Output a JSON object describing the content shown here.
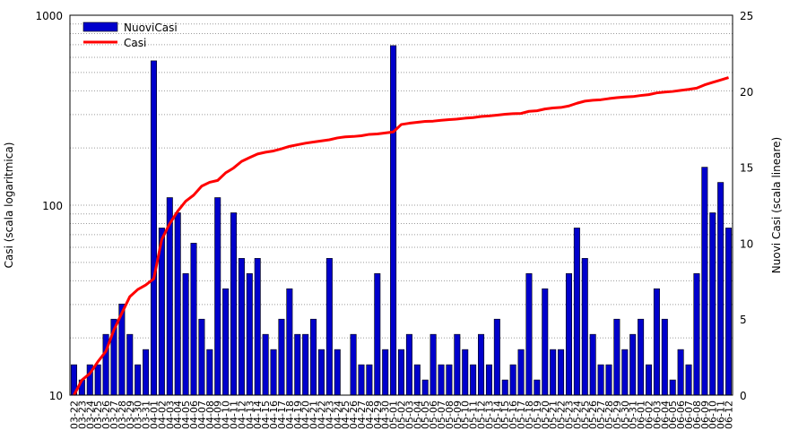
{
  "chart_data": {
    "type": "bar",
    "y_left": {
      "label": "Casi (scala logaritmica)",
      "scale": "log",
      "range": [
        10,
        1000
      ],
      "ticks": [
        "10",
        "100",
        "1000"
      ]
    },
    "y_right": {
      "label": "Nuovi Casi (scala lineare)",
      "scale": "linear",
      "range": [
        0,
        25
      ],
      "ticks": [
        "0",
        "5",
        "10",
        "15",
        "20",
        "25"
      ]
    },
    "categories": [
      "03-22",
      "03-23",
      "03-24",
      "03-25",
      "03-26",
      "03-27",
      "03-28",
      "03-29",
      "03-30",
      "03-31",
      "04-01",
      "04-02",
      "04-03",
      "04-04",
      "04-05",
      "04-06",
      "04-07",
      "04-08",
      "04-09",
      "04-10",
      "04-11",
      "04-12",
      "04-13",
      "04-14",
      "04-15",
      "04-16",
      "04-17",
      "04-18",
      "04-19",
      "04-20",
      "04-21",
      "04-22",
      "04-23",
      "04-24",
      "04-25",
      "04-26",
      "04-27",
      "04-28",
      "04-29",
      "04-30",
      "05-01",
      "05-02",
      "05-03",
      "05-04",
      "05-05",
      "05-06",
      "05-07",
      "05-08",
      "05-09",
      "05-10",
      "05-11",
      "05-12",
      "05-13",
      "05-14",
      "05-15",
      "05-16",
      "05-17",
      "05-18",
      "05-19",
      "05-20",
      "05-21",
      "05-22",
      "05-23",
      "05-24",
      "05-25",
      "05-26",
      "05-27",
      "05-28",
      "05-29",
      "05-30",
      "05-31",
      "06-01",
      "06-02",
      "06-03",
      "06-04",
      "06-05",
      "06-06",
      "06-07",
      "06-08",
      "06-09",
      "06-10",
      "06-11",
      "06-12"
    ],
    "x_tick_labels": [
      "03-22",
      "03-23",
      "03-24",
      "03-25",
      "03-26",
      "03-27",
      "03-28",
      "03-29",
      "03-30",
      "03-31",
      "04-01",
      "04-02",
      "04-03",
      "04-04",
      "04-05",
      "04-06",
      "04-07",
      "04-08",
      "04-09",
      "04-10",
      "04-11",
      "04-12",
      "04-13",
      "04-14",
      "04-15",
      "04-16",
      "04-17",
      "04-18",
      "04-19",
      "04-20",
      "04-21",
      "04-22",
      "04-23",
      "04-24",
      "04-25",
      "04-26",
      "04-27",
      "04-28",
      "04-29",
      "04-30",
      "05-01",
      "05-02",
      "05-03",
      "05-04",
      "05-05",
      "05-06",
      "05-07",
      "05-08",
      "05-09",
      "05-10",
      "05-11",
      "05-12",
      "05-13",
      "05-14",
      "05-15",
      "05-16",
      "05-17",
      "05-18",
      "05-19",
      "05-20",
      "05-21",
      "05-22",
      "05-23",
      "05-24",
      "05-25",
      "05-26",
      "05-27",
      "05-28",
      "05-29",
      "05-30",
      "05-31",
      "06-01",
      "06-02",
      "06-03",
      "06-04",
      "06-05",
      "06-06",
      "06-07",
      "06-08",
      "06-09",
      "06-10",
      "06-11",
      "06-12"
    ],
    "series": [
      {
        "name": "NuoviCasi",
        "type": "bar",
        "axis": "right",
        "color": "#0000cc",
        "values": [
          2,
          1,
          2,
          2,
          4,
          5,
          6,
          4,
          2,
          3,
          22,
          11,
          13,
          12,
          8,
          10,
          5,
          3,
          13,
          7,
          12,
          9,
          8,
          9,
          4,
          3,
          5,
          7,
          4,
          4,
          5,
          3,
          9,
          3,
          0,
          4,
          2,
          2,
          8,
          3,
          23,
          3,
          4,
          2,
          1,
          4,
          2,
          2,
          4,
          3,
          2,
          4,
          2,
          5,
          1,
          2,
          3,
          8,
          1,
          7,
          3,
          3,
          8,
          11,
          9,
          4,
          2,
          2,
          5,
          3,
          4,
          5,
          2,
          7,
          5,
          1,
          3,
          2,
          8,
          15,
          12,
          14,
          11
        ]
      },
      {
        "name": "Casi",
        "type": "line",
        "axis": "left",
        "color": "#ff0000",
        "values": [
          10,
          12,
          13,
          15,
          17,
          22,
          27,
          33,
          36,
          38,
          41,
          66,
          80,
          93,
          105,
          113,
          126,
          132,
          135,
          148,
          157,
          170,
          178,
          186,
          190,
          193,
          198,
          204,
          208,
          212,
          215,
          218,
          221,
          226,
          229,
          230,
          232,
          236,
          237,
          240,
          243,
          266,
          270,
          273,
          276,
          277,
          280,
          282,
          284,
          287,
          289,
          293,
          295,
          298,
          301,
          303,
          304,
          312,
          314,
          321,
          325,
          327,
          333,
          344,
          353,
          357,
          359,
          364,
          368,
          371,
          373,
          378,
          382,
          390,
          394,
          397,
          402,
          407,
          413,
          430,
          443,
          456,
          470
        ]
      }
    ],
    "legend": {
      "position": "top-left",
      "entries": [
        "NuoviCasi",
        "Casi"
      ]
    },
    "grid": {
      "horizontal": true,
      "vertical": false,
      "style": "dotted"
    }
  }
}
